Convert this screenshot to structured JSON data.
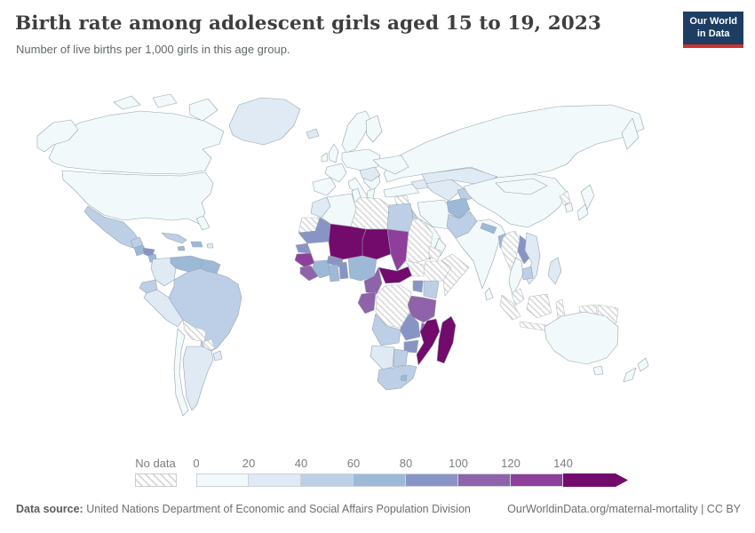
{
  "header": {
    "title": "Birth rate among adolescent girls aged 15 to 19, 2023",
    "subtitle": "Number of live births per 1,000 girls in this age group.",
    "logo": {
      "line1": "Our World",
      "line2": "in Data",
      "bg_color": "#1d3d63",
      "bar_color": "#cf332b"
    }
  },
  "chart_data": {
    "type": "choropleth_map",
    "title": "Birth rate among adolescent girls aged 15 to 19, 2023",
    "unit_description": "live births per 1,000 girls aged 15 to 19",
    "year": "2023",
    "legend": {
      "no_data_label": "No data",
      "tick_labels": [
        "0",
        "20",
        "40",
        "60",
        "80",
        "100",
        "120",
        "140"
      ],
      "bins": [
        {
          "range": "0-20",
          "color": "#f2f9fa"
        },
        {
          "range": "20-40",
          "color": "#dfeaf4"
        },
        {
          "range": "40-60",
          "color": "#bdcfe6"
        },
        {
          "range": "60-80",
          "color": "#9cb9d8"
        },
        {
          "range": "80-100",
          "color": "#8994c6"
        },
        {
          "range": "100-120",
          "color": "#8e63a9"
        },
        {
          "range": "120-140",
          "color": "#8d3f9b"
        },
        {
          "range": "140+",
          "color": "#720b6c"
        }
      ],
      "no_data_hatch_color": "#d8d8d8",
      "border_color": "#97a4ae"
    },
    "regions": [
      {
        "name": "canada",
        "bin": "0-20"
      },
      {
        "name": "usa",
        "bin": "0-20"
      },
      {
        "name": "greenland",
        "bin": "20-40"
      },
      {
        "name": "iceland",
        "bin": "20-40"
      },
      {
        "name": "mexico",
        "bin": "40-60"
      },
      {
        "name": "guatemala",
        "bin": "60-80"
      },
      {
        "name": "honduras",
        "bin": "80-100"
      },
      {
        "name": "nicaragua",
        "bin": "60-80"
      },
      {
        "name": "costa-rica-panama",
        "bin": "40-60"
      },
      {
        "name": "cuba",
        "bin": "40-60"
      },
      {
        "name": "hispaniola",
        "bin": "60-80"
      },
      {
        "name": "jamaica",
        "bin": "60-80"
      },
      {
        "name": "puerto-rico",
        "bin": "20-40"
      },
      {
        "name": "venezuela",
        "bin": "60-80"
      },
      {
        "name": "colombia",
        "bin": "20-40"
      },
      {
        "name": "guyanas",
        "bin": "60-80"
      },
      {
        "name": "ecuador",
        "bin": "40-60"
      },
      {
        "name": "peru",
        "bin": "20-40"
      },
      {
        "name": "brazil",
        "bin": "40-60"
      },
      {
        "name": "bolivia",
        "bin": "No data"
      },
      {
        "name": "paraguay",
        "bin": "No data"
      },
      {
        "name": "argentina",
        "bin": "20-40"
      },
      {
        "name": "chile",
        "bin": "0-20"
      },
      {
        "name": "uruguay",
        "bin": "20-40"
      },
      {
        "name": "scandinavia",
        "bin": "0-20"
      },
      {
        "name": "finland",
        "bin": "0-20"
      },
      {
        "name": "uk",
        "bin": "0-20"
      },
      {
        "name": "ireland",
        "bin": "0-20"
      },
      {
        "name": "iberia",
        "bin": "0-20"
      },
      {
        "name": "france",
        "bin": "0-20"
      },
      {
        "name": "central-europe",
        "bin": "0-20"
      },
      {
        "name": "italy",
        "bin": "0-20"
      },
      {
        "name": "balkans",
        "bin": "0-20"
      },
      {
        "name": "romania-bulgaria",
        "bin": "20-40"
      },
      {
        "name": "ukraine",
        "bin": "0-20"
      },
      {
        "name": "greece",
        "bin": "0-20"
      },
      {
        "name": "russia",
        "bin": "0-20"
      },
      {
        "name": "kazakhstan",
        "bin": "20-40"
      },
      {
        "name": "uzbekistan-turkmenistan",
        "bin": "20-40"
      },
      {
        "name": "kyrgyzstan-tajikistan",
        "bin": "40-60"
      },
      {
        "name": "caucasus",
        "bin": "20-40"
      },
      {
        "name": "turkey",
        "bin": "0-20"
      },
      {
        "name": "syria",
        "bin": "No data"
      },
      {
        "name": "iraq",
        "bin": "40-60"
      },
      {
        "name": "jordan-israel",
        "bin": "0-20"
      },
      {
        "name": "saudi-arabia",
        "bin": "0-20"
      },
      {
        "name": "yemen",
        "bin": "60-80"
      },
      {
        "name": "oman",
        "bin": "0-20"
      },
      {
        "name": "iran",
        "bin": "0-20"
      },
      {
        "name": "afghanistan",
        "bin": "60-80"
      },
      {
        "name": "pakistan",
        "bin": "40-60"
      },
      {
        "name": "india",
        "bin": "0-20"
      },
      {
        "name": "nepal",
        "bin": "60-80"
      },
      {
        "name": "bangladesh",
        "bin": "60-80"
      },
      {
        "name": "sri-lanka",
        "bin": "0-20"
      },
      {
        "name": "china",
        "bin": "0-20"
      },
      {
        "name": "mongolia",
        "bin": "0-20"
      },
      {
        "name": "north-korea",
        "bin": "No data"
      },
      {
        "name": "south-korea",
        "bin": "0-20"
      },
      {
        "name": "japan",
        "bin": "0-20"
      },
      {
        "name": "myanmar",
        "bin": "No data"
      },
      {
        "name": "thailand",
        "bin": "0-20"
      },
      {
        "name": "laos",
        "bin": "80-100"
      },
      {
        "name": "vietnam",
        "bin": "20-40"
      },
      {
        "name": "cambodia",
        "bin": "40-60"
      },
      {
        "name": "malaysia",
        "bin": "No data"
      },
      {
        "name": "indonesia",
        "bin": "No data"
      },
      {
        "name": "philippines",
        "bin": "20-40"
      },
      {
        "name": "papua-new-guinea",
        "bin": "No data"
      },
      {
        "name": "australia",
        "bin": "0-20"
      },
      {
        "name": "new-zealand",
        "bin": "0-20"
      },
      {
        "name": "morocco",
        "bin": "20-40"
      },
      {
        "name": "western-sahara",
        "bin": "No data"
      },
      {
        "name": "algeria",
        "bin": "0-20"
      },
      {
        "name": "tunisia",
        "bin": "0-20"
      },
      {
        "name": "libya",
        "bin": "No data"
      },
      {
        "name": "egypt",
        "bin": "40-60"
      },
      {
        "name": "mauritania",
        "bin": "80-100"
      },
      {
        "name": "mali",
        "bin": "140+"
      },
      {
        "name": "niger",
        "bin": "140+"
      },
      {
        "name": "chad",
        "bin": "120-140"
      },
      {
        "name": "sudan",
        "bin": "No data"
      },
      {
        "name": "eritrea-djibouti",
        "bin": "No data"
      },
      {
        "name": "senegal",
        "bin": "80-100"
      },
      {
        "name": "guinea",
        "bin": "120-140"
      },
      {
        "name": "sierra-leone-liberia",
        "bin": "100-120"
      },
      {
        "name": "cote-divoire",
        "bin": "60-80"
      },
      {
        "name": "burkina-faso",
        "bin": "80-100"
      },
      {
        "name": "ghana",
        "bin": "60-80"
      },
      {
        "name": "togo-benin",
        "bin": "80-100"
      },
      {
        "name": "nigeria",
        "bin": "60-80"
      },
      {
        "name": "cameroon",
        "bin": "100-120"
      },
      {
        "name": "central-african-republic",
        "bin": "140+"
      },
      {
        "name": "south-sudan",
        "bin": "No data"
      },
      {
        "name": "ethiopia",
        "bin": "No data"
      },
      {
        "name": "somalia",
        "bin": "No data"
      },
      {
        "name": "kenya",
        "bin": "40-60"
      },
      {
        "name": "uganda",
        "bin": "80-100"
      },
      {
        "name": "drc",
        "bin": "No data"
      },
      {
        "name": "gabon-congo",
        "bin": "100-120"
      },
      {
        "name": "rwanda-burundi",
        "bin": "80-100"
      },
      {
        "name": "tanzania",
        "bin": "100-120"
      },
      {
        "name": "angola",
        "bin": "40-60"
      },
      {
        "name": "zambia",
        "bin": "80-100"
      },
      {
        "name": "malawi",
        "bin": "100-120"
      },
      {
        "name": "mozambique",
        "bin": "140+"
      },
      {
        "name": "zimbabwe",
        "bin": "80-100"
      },
      {
        "name": "namibia",
        "bin": "20-40"
      },
      {
        "name": "botswana",
        "bin": "40-60"
      },
      {
        "name": "south-africa",
        "bin": "40-60"
      },
      {
        "name": "lesotho",
        "bin": "60-80"
      },
      {
        "name": "madagascar",
        "bin": "140+"
      }
    ]
  },
  "footer": {
    "data_source_label": "Data source:",
    "data_source": "United Nations Department of Economic and Social Affairs Population Division",
    "link": "OurWorldinData.org/maternal-mortality",
    "separator": " | ",
    "license": "CC BY"
  }
}
